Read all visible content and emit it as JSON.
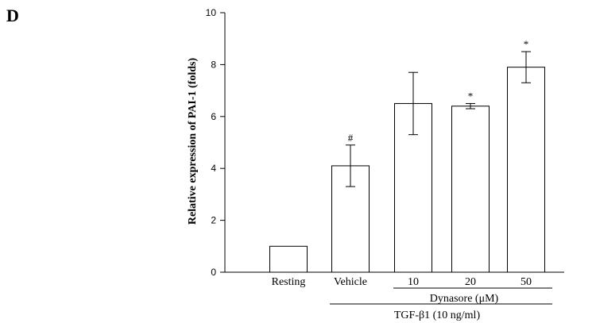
{
  "panel_label": "D",
  "chart_data": {
    "type": "bar",
    "categories": [
      "Resting",
      "Vehicle",
      "10",
      "20",
      "50"
    ],
    "values": [
      1.0,
      4.1,
      6.5,
      6.4,
      7.9
    ],
    "errors": [
      0,
      0.8,
      1.2,
      0.1,
      0.6
    ],
    "annotations": [
      "",
      "#",
      "",
      "*",
      "*"
    ],
    "ylabel": "Relative expression of PAI-1 (folds)",
    "ylim": [
      0,
      10
    ],
    "yticks": [
      0,
      2,
      4,
      6,
      8,
      10
    ],
    "grid": false,
    "bar_fill": "#ffffff",
    "bar_stroke": "#000000",
    "group_labels": {
      "dynasore": "Dynasore (μM)",
      "treatment": "TGF-β1 (10 ng/ml)"
    }
  }
}
